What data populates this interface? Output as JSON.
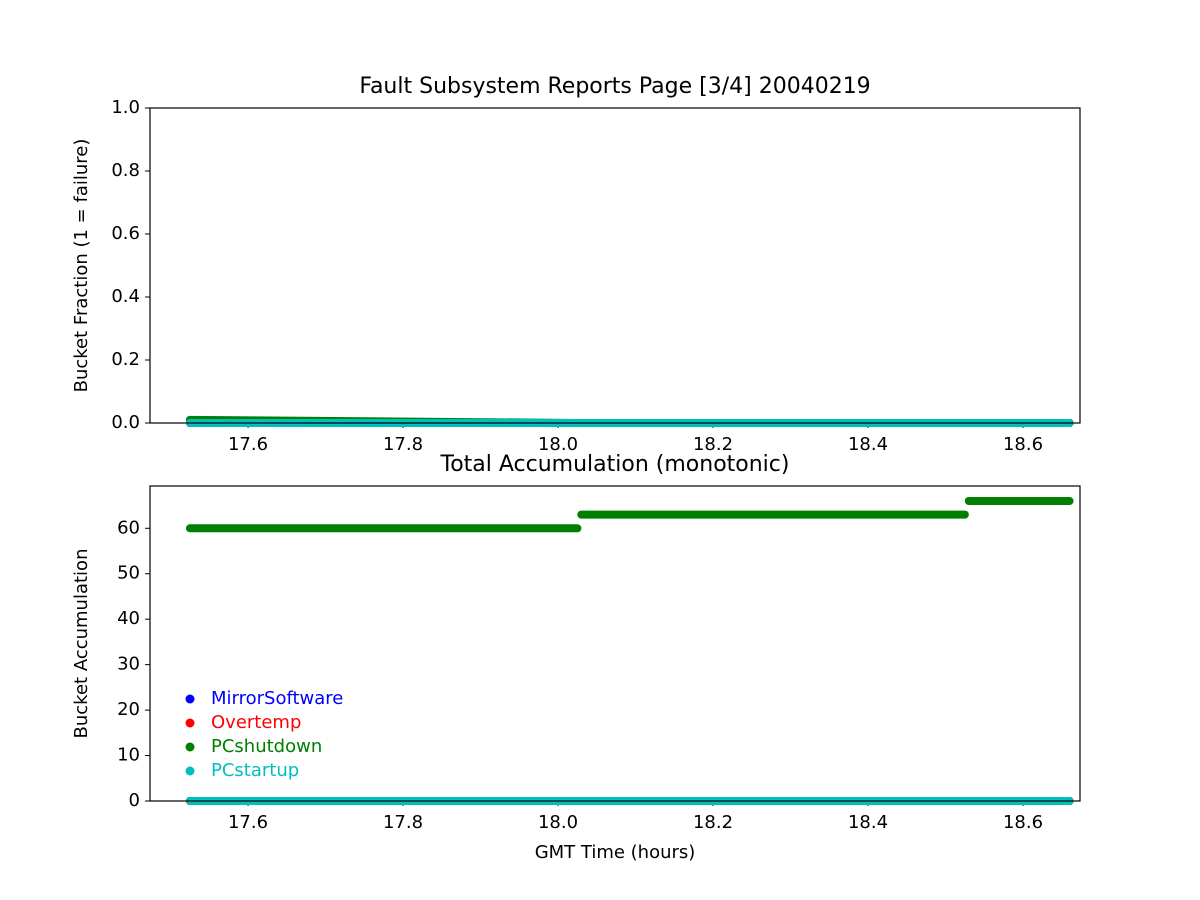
{
  "chart_data": [
    {
      "type": "line",
      "title": "Fault Subsystem Reports Page [3/4] 20040219",
      "ylabel": "Bucket Fraction (1 = failure)",
      "x": [
        17.525,
        18.025,
        18.027,
        18.03,
        18.525,
        18.527,
        18.53,
        18.66
      ],
      "series": [
        {
          "color": "#0000ff",
          "values": [
            0,
            0,
            0,
            0,
            0,
            0,
            0,
            0
          ]
        },
        {
          "color": "#ff0000",
          "values": [
            0,
            0,
            0,
            0,
            0,
            0,
            0,
            0
          ]
        },
        {
          "color": "#008000",
          "values": [
            0.01,
            0,
            0,
            0,
            0,
            0,
            0,
            0
          ]
        },
        {
          "color": "#00bfbf",
          "values": [
            0,
            0,
            0,
            0,
            0,
            0,
            0,
            0
          ]
        }
      ],
      "xlim": [
        17.4735,
        18.6735
      ],
      "ylim": [
        0,
        1
      ],
      "xticks": [
        17.6,
        17.8,
        {
          "value": 18,
          "label": "18.0"
        },
        18.2,
        18.4,
        18.6
      ],
      "yticks": [
        {
          "value": 0,
          "label": "0.0"
        },
        0.2,
        0.4,
        0.6,
        0.8,
        {
          "value": 1,
          "label": "1.0"
        }
      ],
      "legend": false
    },
    {
      "type": "line",
      "title": "Total Accumulation (monotonic)",
      "xlabel": "GMT Time (hours)",
      "ylabel": "Bucket Accumulation",
      "x": [
        17.525,
        18.025,
        18.027,
        18.03,
        18.525,
        18.527,
        18.53,
        18.66
      ],
      "series": [
        {
          "name": "MirrorSoftware",
          "color": "#0000ff",
          "values": [
            0,
            0,
            0,
            0,
            0,
            0,
            0,
            0
          ]
        },
        {
          "name": "Overtemp",
          "color": "#ff0000",
          "values": [
            0,
            0,
            0,
            0,
            0,
            0,
            0,
            0
          ]
        },
        {
          "name": "PCshutdown",
          "color": "#008000",
          "values": [
            60,
            60,
            null,
            63,
            63,
            null,
            66,
            66
          ]
        },
        {
          "name": "PCstartup",
          "color": "#00bfbf",
          "values": [
            0,
            0,
            0,
            0,
            0,
            0,
            0,
            0
          ]
        }
      ],
      "xlim": [
        17.4735,
        18.6735
      ],
      "ylim": [
        0,
        69.3
      ],
      "xticks": [
        17.6,
        17.8,
        {
          "value": 18,
          "label": "18.0"
        },
        18.2,
        18.4,
        18.6
      ],
      "yticks": [
        0,
        10,
        20,
        30,
        40,
        50,
        60
      ],
      "legend": "lower left"
    }
  ]
}
